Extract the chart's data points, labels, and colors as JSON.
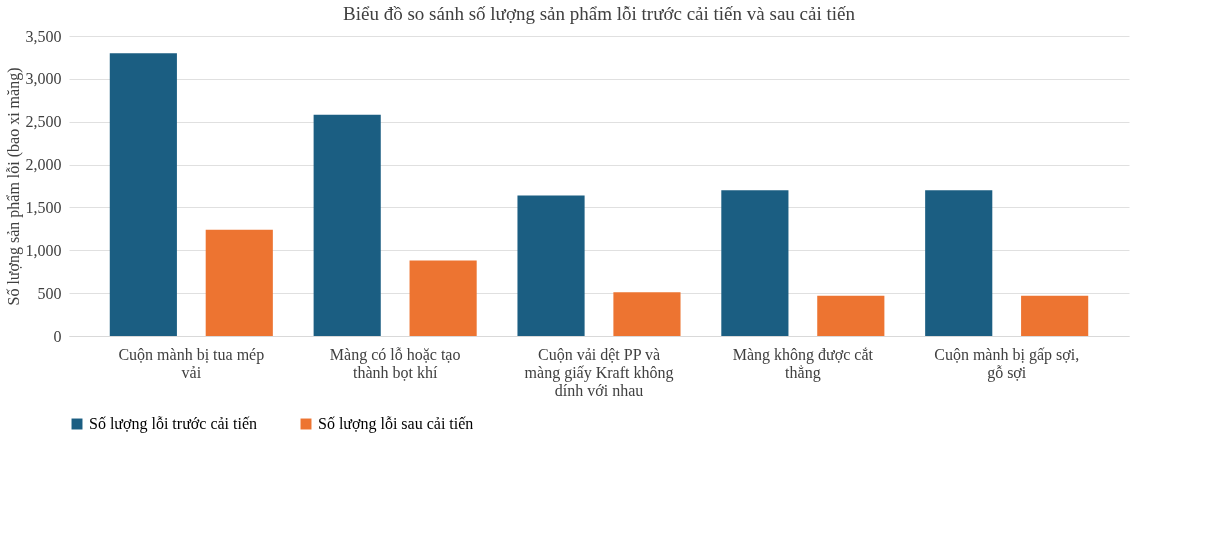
{
  "chart_data": {
    "type": "bar",
    "title": "Biểu đồ so sánh số lượng sản phẩm lỗi trước cải tiến và sau cải tiến",
    "ylabel": "Số lượng sản phẩm lỗi (bao xi măng)",
    "categories": [
      "Cuộn mành bị tua mép vải",
      "Màng có lỗ hoặc tạo thành bọt khí",
      "Cuộn vải dệt PP và màng giấy Kraft không dính với nhau",
      "Màng không được cắt thẳng",
      "Cuộn mành bị gấp sợi, gỗ sợi"
    ],
    "series": [
      {
        "name": "Số lượng lỗi trước cải tiến",
        "color": "#1b5e82",
        "values": [
          3300,
          2580,
          1640,
          1700,
          1700
        ]
      },
      {
        "name": "Số lượng lỗi sau cải tiến",
        "color": "#ed7431",
        "values": [
          1240,
          880,
          510,
          470,
          470
        ]
      }
    ],
    "ylim": [
      0,
      3500
    ],
    "yticks": [
      {
        "value": 0,
        "label": "0"
      },
      {
        "value": 500,
        "label": "500"
      },
      {
        "value": 1000,
        "label": "1,000"
      },
      {
        "value": 1500,
        "label": "1,500"
      },
      {
        "value": 2000,
        "label": "2,000"
      },
      {
        "value": 2500,
        "label": "2,500"
      },
      {
        "value": 3000,
        "label": "3,000"
      },
      {
        "value": 3500,
        "label": "3,500"
      }
    ],
    "grid": "y",
    "legend": "bottom"
  }
}
